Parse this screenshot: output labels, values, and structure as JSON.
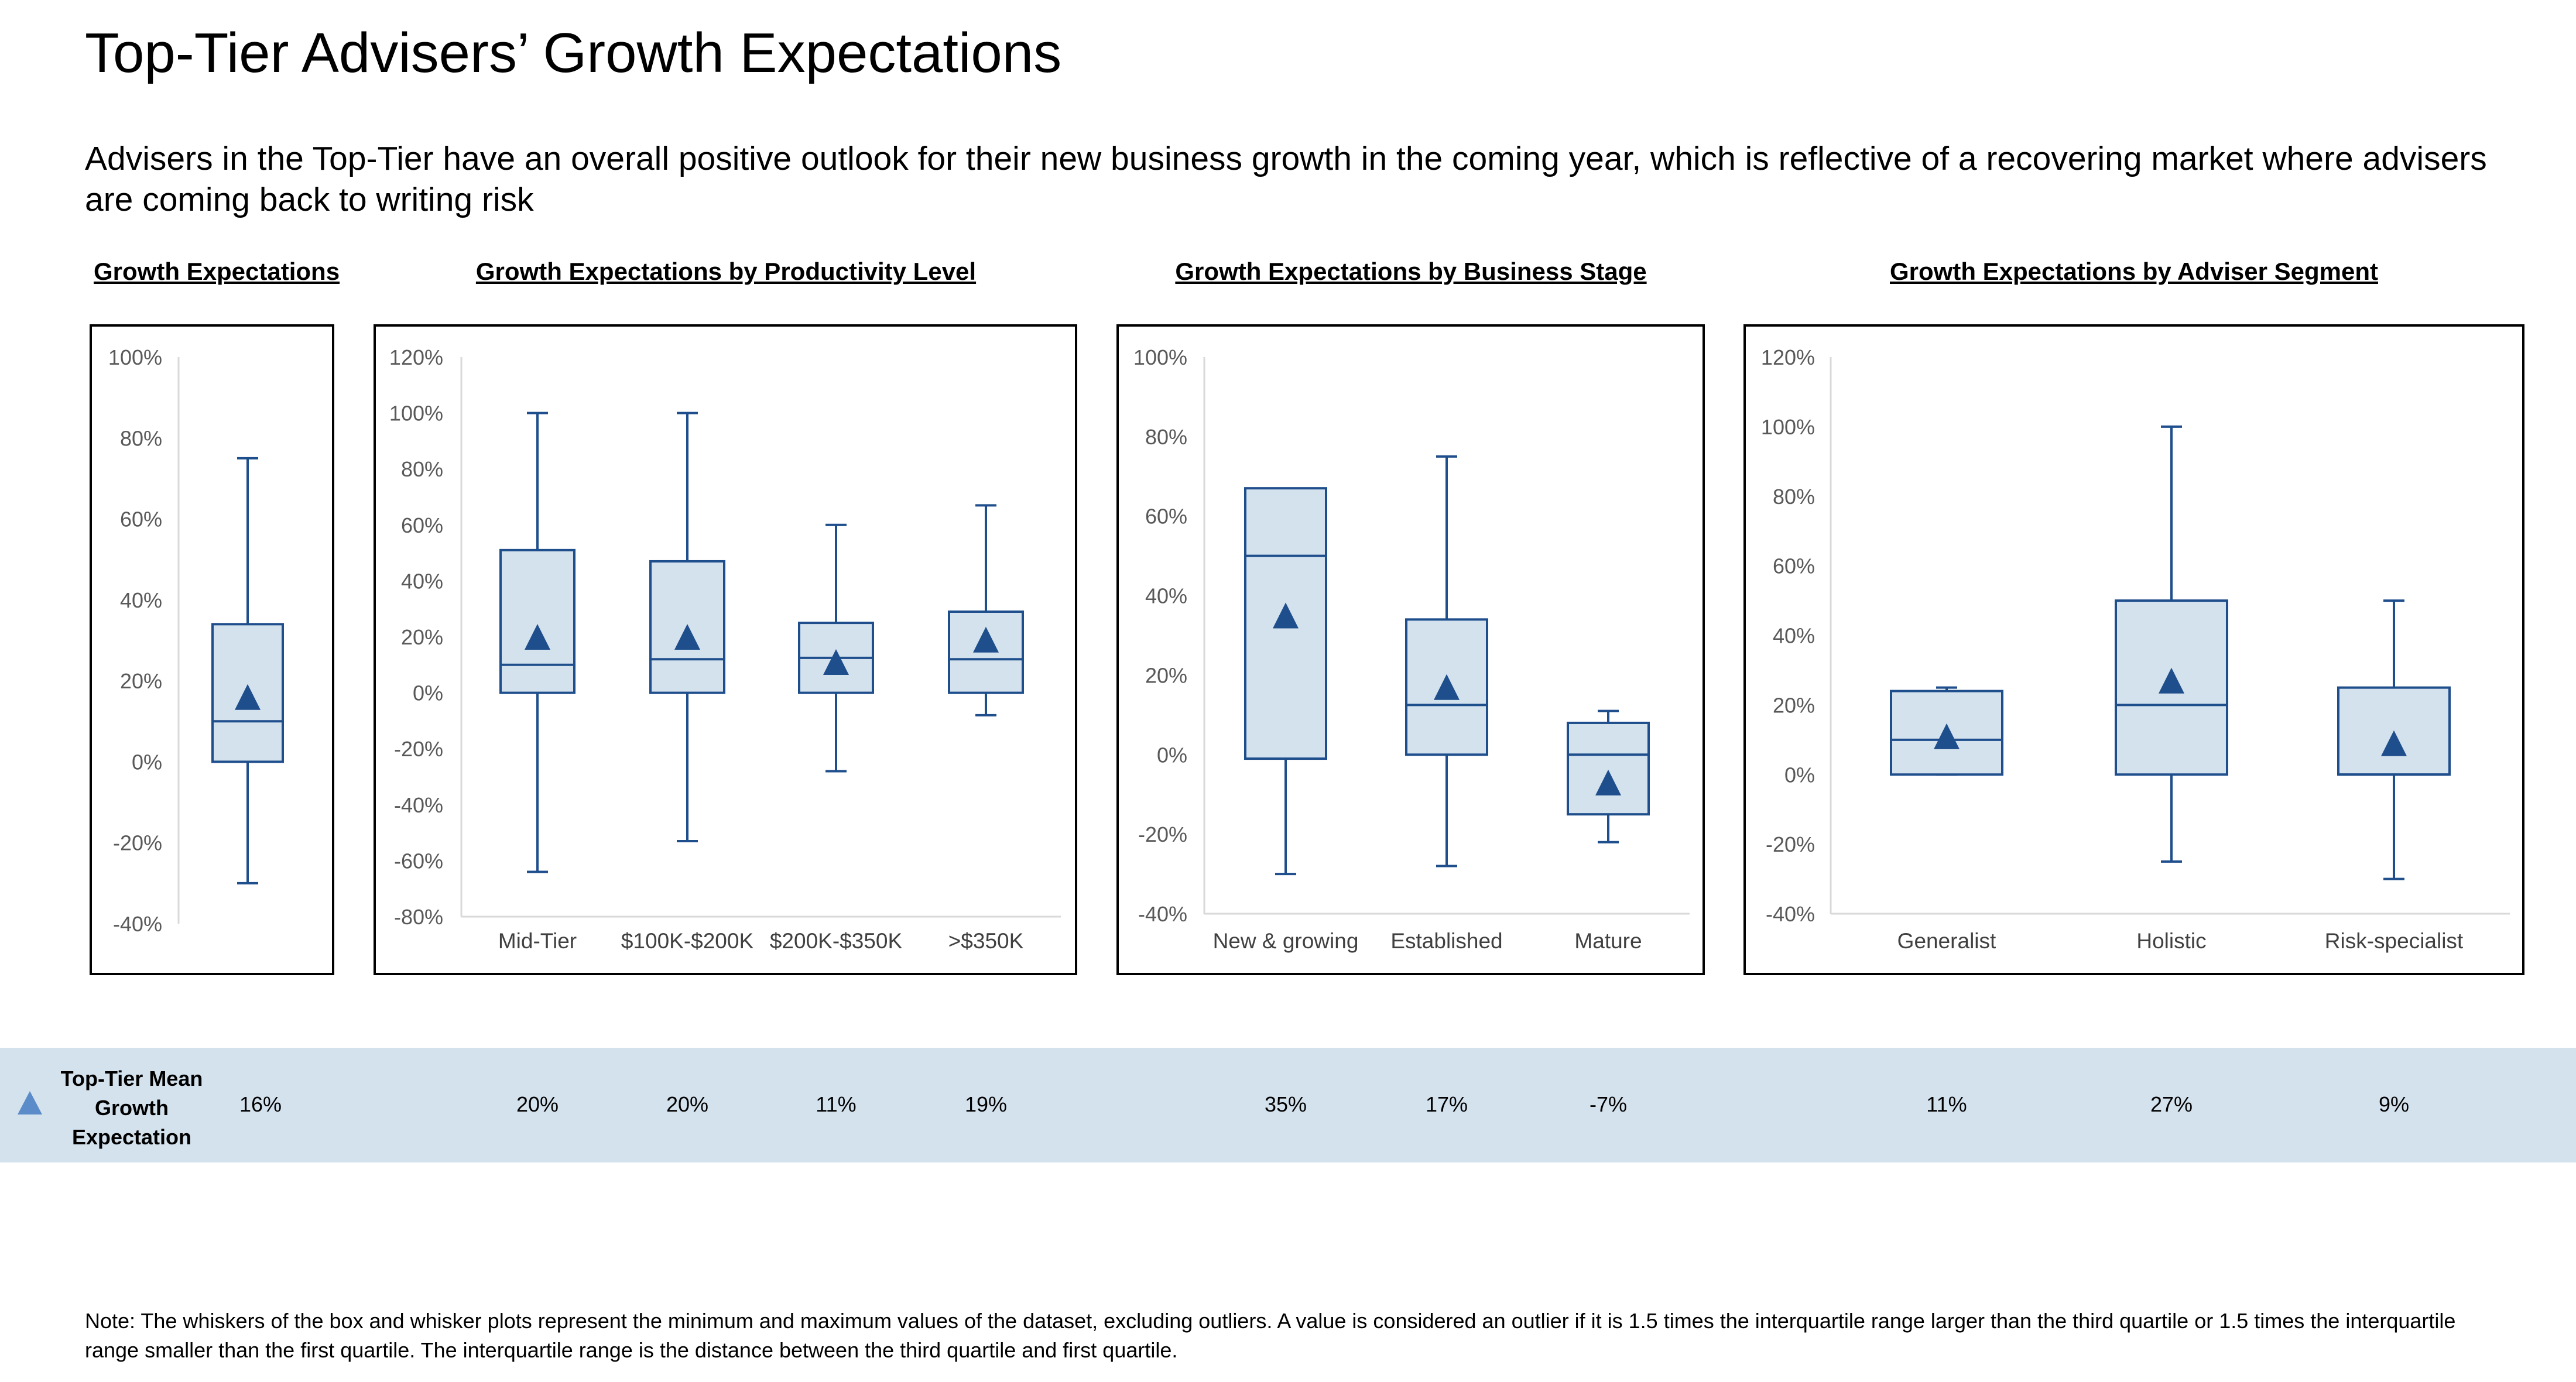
{
  "page": {
    "title": "Top-Tier Advisers’ Growth Expectations",
    "subtitle": "Advisers in the Top-Tier have an overall positive outlook for their new business growth in the coming year, which is reflective of a recovering market where advisers are coming back to writing risk",
    "mean_row_label": "Top-Tier Mean Growth Expectation",
    "note": "Note: The whiskers of the box and whisker plots represent the minimum and maximum values of the dataset, excluding outliers. A value is considered an outlier if it is 1.5 times the interquartile range larger than the third quartile or 1.5 times the interquartile range smaller than the first quartile. The interquartile range is the distance between the third quartile and first quartile.",
    "colors": {
      "box_fill": "#d4e2ee",
      "box_stroke": "#1f4e8c",
      "marker": "#1f4e8c",
      "band_marker": "#5b8bc9",
      "band_bg": "#d4e2ee"
    },
    "mean_marker_icon": "triangle-icon"
  },
  "chart_data": [
    {
      "type": "box",
      "title": "Growth Expectations",
      "ylim": [
        -40,
        100
      ],
      "y_ticks": [
        "-40%",
        "-20%",
        "0%",
        "20%",
        "40%",
        "60%",
        "80%",
        "100%"
      ],
      "categories": [
        ""
      ],
      "boxes": [
        {
          "min": -30,
          "q1": 0,
          "median": 10,
          "q3": 34,
          "max": 75,
          "mean": 16
        }
      ],
      "mean_labels": [
        "16%"
      ]
    },
    {
      "type": "box",
      "title": "Growth Expectations by Productivity Level",
      "ylim": [
        -80,
        120
      ],
      "y_ticks": [
        "-80%",
        "-60%",
        "-40%",
        "-20%",
        "0%",
        "20%",
        "40%",
        "60%",
        "80%",
        "100%",
        "120%"
      ],
      "categories": [
        "Mid-Tier",
        "$100K-$200K",
        "$200K-$350K",
        ">$350K"
      ],
      "boxes": [
        {
          "min": -64,
          "q1": 0,
          "median": 10,
          "q3": 51,
          "max": 100,
          "mean": 20
        },
        {
          "min": -53,
          "q1": 0,
          "median": 12,
          "q3": 47,
          "max": 100,
          "mean": 20
        },
        {
          "min": -28,
          "q1": 0,
          "median": 12.5,
          "q3": 25,
          "max": 60,
          "mean": 11
        },
        {
          "min": -8,
          "q1": 0,
          "median": 12,
          "q3": 29,
          "max": 67,
          "mean": 19
        }
      ],
      "mean_labels": [
        "20%",
        "20%",
        "11%",
        "19%"
      ]
    },
    {
      "type": "box",
      "title": "Growth Expectations by Business Stage",
      "ylim": [
        -40,
        100
      ],
      "y_ticks": [
        "-40%",
        "-20%",
        "0%",
        "20%",
        "40%",
        "60%",
        "80%",
        "100%"
      ],
      "categories": [
        "New & growing",
        "Established",
        "Mature"
      ],
      "boxes": [
        {
          "min": -30,
          "q1": -1,
          "median": 50,
          "q3": 67,
          "max": null,
          "mean": 35
        },
        {
          "min": -28,
          "q1": 0,
          "median": 12.5,
          "q3": 34,
          "max": 75,
          "mean": 17
        },
        {
          "min": -22,
          "q1": -15,
          "median": 0,
          "q3": 8,
          "max": 11,
          "mean": -7
        }
      ],
      "mean_labels": [
        "35%",
        "17%",
        "-7%"
      ]
    },
    {
      "type": "box",
      "title": "Growth Expectations by Adviser Segment",
      "ylim": [
        -40,
        120
      ],
      "y_ticks": [
        "-40%",
        "-20%",
        "0%",
        "20%",
        "40%",
        "60%",
        "80%",
        "100%",
        "120%"
      ],
      "categories": [
        "Generalist",
        "Holistic",
        "Risk-specialist"
      ],
      "boxes": [
        {
          "min": 0,
          "q1": 0,
          "median": 10,
          "q3": 24,
          "max": 25,
          "mean": 11
        },
        {
          "min": -25,
          "q1": 0,
          "median": 20,
          "q3": 50,
          "max": 100,
          "mean": 27
        },
        {
          "min": -30,
          "q1": 0,
          "median": 0,
          "q3": 25,
          "max": 50,
          "mean": 9
        }
      ],
      "mean_labels": [
        "11%",
        "27%",
        "9%"
      ]
    }
  ]
}
